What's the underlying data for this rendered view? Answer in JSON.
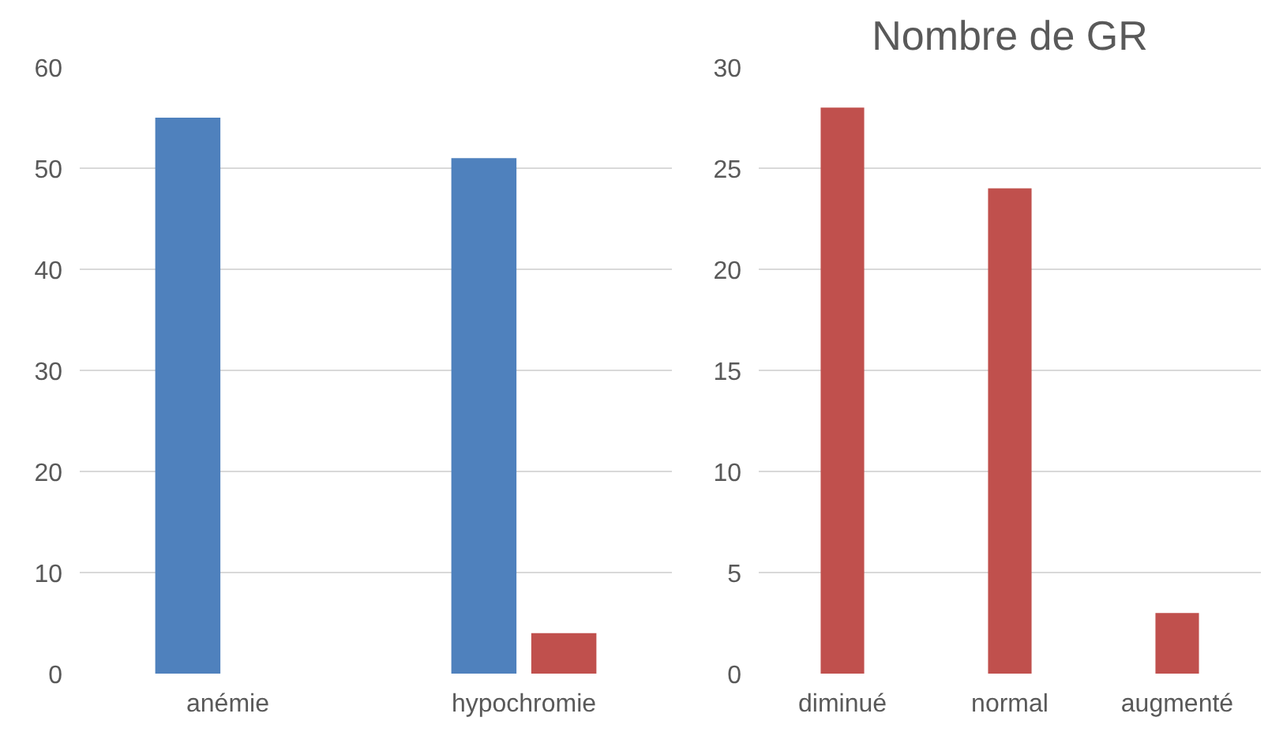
{
  "chart_data": [
    {
      "type": "bar",
      "categories": [
        "anémie",
        "hypochromie"
      ],
      "series": [
        {
          "color": "#4f81bd",
          "values": [
            55,
            51
          ]
        },
        {
          "color": "#c0504d",
          "values": [
            null,
            4
          ]
        }
      ],
      "ylim": [
        0,
        60
      ],
      "yticks": [
        0,
        10,
        20,
        30,
        40,
        50,
        60
      ],
      "grid": "y"
    },
    {
      "type": "bar",
      "title": "Nombre de GR",
      "categories": [
        "diminué",
        "normal",
        "augmenté"
      ],
      "series": [
        {
          "color": "#c0504d",
          "values": [
            28,
            24,
            3
          ]
        }
      ],
      "ylim": [
        0,
        30
      ],
      "yticks": [
        0,
        5,
        10,
        15,
        20,
        25,
        30
      ],
      "grid": "y"
    }
  ]
}
